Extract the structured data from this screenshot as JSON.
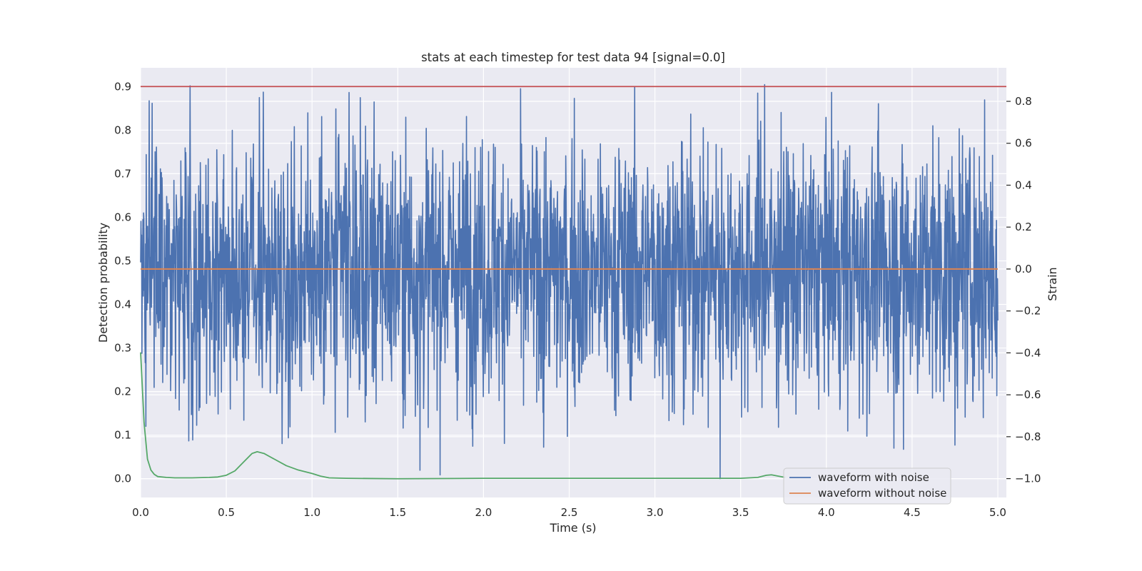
{
  "chart_data": {
    "type": "line",
    "title": "stats at each timestep for test data 94 [signal=0.0]",
    "xlabel": "Time (s)",
    "ylabel_left": "Detection probability",
    "ylabel_right": "Strain",
    "xlim": [
      0.0,
      5.05
    ],
    "ylim_left": [
      -0.043,
      0.943
    ],
    "ylim_right": [
      -1.09,
      0.96
    ],
    "x_ticks": [
      "0.0",
      "0.5",
      "1.0",
      "1.5",
      "2.0",
      "2.5",
      "3.0",
      "3.5",
      "4.0",
      "4.5",
      "5.0"
    ],
    "y_ticks_left": [
      "0.0",
      "0.1",
      "0.2",
      "0.3",
      "0.4",
      "0.5",
      "0.6",
      "0.7",
      "0.8",
      "0.9"
    ],
    "y_ticks_right": [
      "−1.0",
      "−0.8",
      "−0.6",
      "−0.4",
      "−0.2",
      "0.0",
      "0.2",
      "0.4",
      "0.6",
      "0.8"
    ],
    "y_ticks_right_values": [
      -1.0,
      -0.8,
      -0.6,
      -0.4,
      -0.2,
      0.0,
      0.2,
      0.4,
      0.6,
      0.8
    ],
    "grid": true,
    "background_color": "#eaeaf2",
    "legend_position": "lower-right",
    "threshold": {
      "axis": "left",
      "value": 0.9,
      "color": "#c44e52"
    },
    "noise_waveform": {
      "axis": "right",
      "color": "#4c72b0",
      "x_range": [
        0.0,
        5.0
      ],
      "amplitude_typical": 0.5,
      "min": -1.0,
      "max": 0.88,
      "notable_spikes": [
        {
          "x": 0.28,
          "y": -0.82
        },
        {
          "x": 1.63,
          "y": -0.96
        },
        {
          "x": 2.35,
          "y": -0.85
        },
        {
          "x": 3.38,
          "y": -1.0
        },
        {
          "x": 3.64,
          "y": 0.88
        },
        {
          "x": 4.45,
          "y": -0.86
        },
        {
          "x": 4.75,
          "y": -0.84
        }
      ]
    },
    "series": [
      {
        "name": "waveform with noise",
        "axis": "right",
        "color": "#4c72b0"
      },
      {
        "name": "waveform without noise",
        "axis": "right",
        "color": "#dd8452",
        "x": [
          0.0,
          5.0
        ],
        "y": [
          0.0,
          0.0
        ]
      },
      {
        "axis": "left",
        "color": "#55a868",
        "x": [
          0.0,
          0.02,
          0.04,
          0.06,
          0.08,
          0.1,
          0.15,
          0.2,
          0.3,
          0.4,
          0.45,
          0.5,
          0.55,
          0.6,
          0.65,
          0.68,
          0.72,
          0.78,
          0.85,
          0.92,
          1.0,
          1.05,
          1.1,
          1.2,
          1.5,
          2.0,
          2.5,
          3.0,
          3.5,
          3.6,
          3.65,
          3.68,
          3.72,
          3.76
        ],
        "y": [
          0.29,
          0.13,
          0.045,
          0.02,
          0.01,
          0.005,
          0.003,
          0.002,
          0.002,
          0.003,
          0.004,
          0.008,
          0.018,
          0.038,
          0.058,
          0.062,
          0.058,
          0.045,
          0.03,
          0.02,
          0.012,
          0.006,
          0.002,
          0.001,
          0.0,
          0.001,
          0.001,
          0.001,
          0.001,
          0.003,
          0.008,
          0.009,
          0.006,
          0.003
        ]
      }
    ]
  }
}
